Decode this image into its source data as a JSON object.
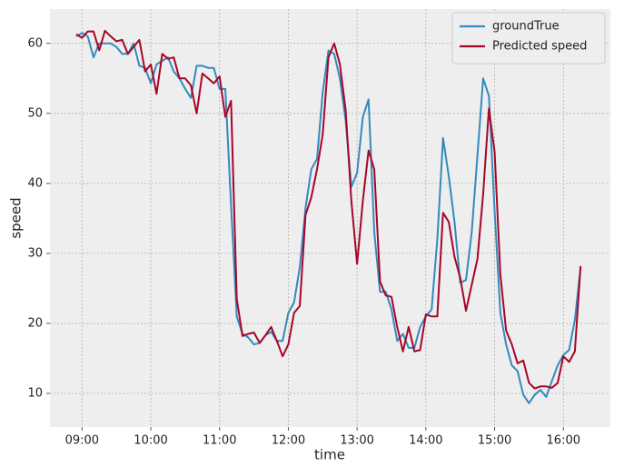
{
  "chart_data": {
    "type": "line",
    "xlabel": "time",
    "ylabel": "speed",
    "x": [
      "08:55",
      "09:00",
      "09:05",
      "09:10",
      "09:15",
      "09:20",
      "09:25",
      "09:30",
      "09:35",
      "09:40",
      "09:45",
      "09:50",
      "09:55",
      "10:00",
      "10:05",
      "10:10",
      "10:15",
      "10:20",
      "10:25",
      "10:30",
      "10:35",
      "10:40",
      "10:45",
      "10:50",
      "10:55",
      "11:00",
      "11:05",
      "11:10",
      "11:15",
      "11:20",
      "11:25",
      "11:30",
      "11:35",
      "11:40",
      "11:45",
      "11:50",
      "11:55",
      "12:00",
      "12:05",
      "12:10",
      "12:15",
      "12:20",
      "12:25",
      "12:30",
      "12:35",
      "12:40",
      "12:45",
      "12:50",
      "12:55",
      "13:00",
      "13:05",
      "13:10",
      "13:15",
      "13:20",
      "13:25",
      "13:30",
      "13:35",
      "13:40",
      "13:45",
      "13:50",
      "13:55",
      "14:00",
      "14:05",
      "14:10",
      "14:15",
      "14:20",
      "14:25",
      "14:30",
      "14:35",
      "14:40",
      "14:45",
      "14:50",
      "14:55",
      "15:00",
      "15:05",
      "15:10",
      "15:15",
      "15:20",
      "15:25",
      "15:30",
      "15:35",
      "15:40",
      "15:45",
      "15:50",
      "15:55",
      "16:00",
      "16:05",
      "16:10",
      "16:15"
    ],
    "series": [
      {
        "name": "groundTrue",
        "color": "#348ABD",
        "values": [
          61,
          61.5,
          61,
          58,
          60,
          60,
          60,
          59.5,
          58.5,
          58.5,
          60,
          56.8,
          56.5,
          54.3,
          57,
          57.5,
          58,
          56,
          55,
          53.5,
          52.2,
          56.8,
          56.8,
          56.5,
          56.5,
          53.5,
          53.5,
          37,
          21,
          18.5,
          18,
          17,
          17.2,
          18.3,
          18.8,
          17.5,
          17.5,
          21.5,
          23,
          28,
          36.5,
          42,
          43.5,
          53,
          59,
          58.5,
          55,
          49,
          39.5,
          41.5,
          49.5,
          52,
          33,
          24.5,
          24.5,
          22,
          17.5,
          18.5,
          16.5,
          16.5,
          19.5,
          21,
          22,
          32,
          46.5,
          41,
          34.5,
          25.8,
          26.2,
          33,
          44,
          55,
          52.5,
          36,
          21.5,
          17,
          14,
          13.2,
          9.8,
          8.6,
          9.8,
          10.5,
          9.5,
          11.8,
          14,
          15.5,
          16.2,
          20.5,
          28
        ]
      },
      {
        "name": "Predicted speed",
        "color": "#A60628",
        "values": [
          61.3,
          60.8,
          61.7,
          61.7,
          59,
          61.8,
          61,
          60.3,
          60.5,
          58.5,
          59.5,
          60.5,
          56,
          57,
          52.8,
          58.5,
          57.8,
          58,
          55,
          55,
          54,
          50,
          55.7,
          55,
          54.3,
          55.3,
          49.5,
          51.8,
          23.5,
          18.2,
          18.5,
          18.7,
          17.2,
          18.3,
          19.5,
          17.5,
          15.3,
          17,
          21.5,
          22.5,
          35.5,
          38,
          42,
          47,
          58,
          60,
          57,
          50.5,
          37.5,
          28.5,
          37.5,
          44.7,
          42,
          26,
          24,
          23.8,
          19.5,
          16,
          19.5,
          16,
          16.2,
          21.3,
          21,
          21,
          35.8,
          34.5,
          29.5,
          26.5,
          21.8,
          25.5,
          29.2,
          38.5,
          50.7,
          44.5,
          27,
          19,
          17,
          14.3,
          14.7,
          11.5,
          10.7,
          11,
          11,
          10.8,
          11.5,
          15.3,
          14.5,
          16,
          28.2
        ]
      }
    ],
    "xlim": [
      "08:32",
      "16:41"
    ],
    "xticks": [
      "09:00",
      "10:00",
      "11:00",
      "12:00",
      "13:00",
      "14:00",
      "15:00",
      "16:00"
    ],
    "ylim": [
      5.2,
      64.9
    ],
    "yticks": [
      10,
      20,
      30,
      40,
      50,
      60
    ],
    "grid": true,
    "legend": "upper right"
  }
}
